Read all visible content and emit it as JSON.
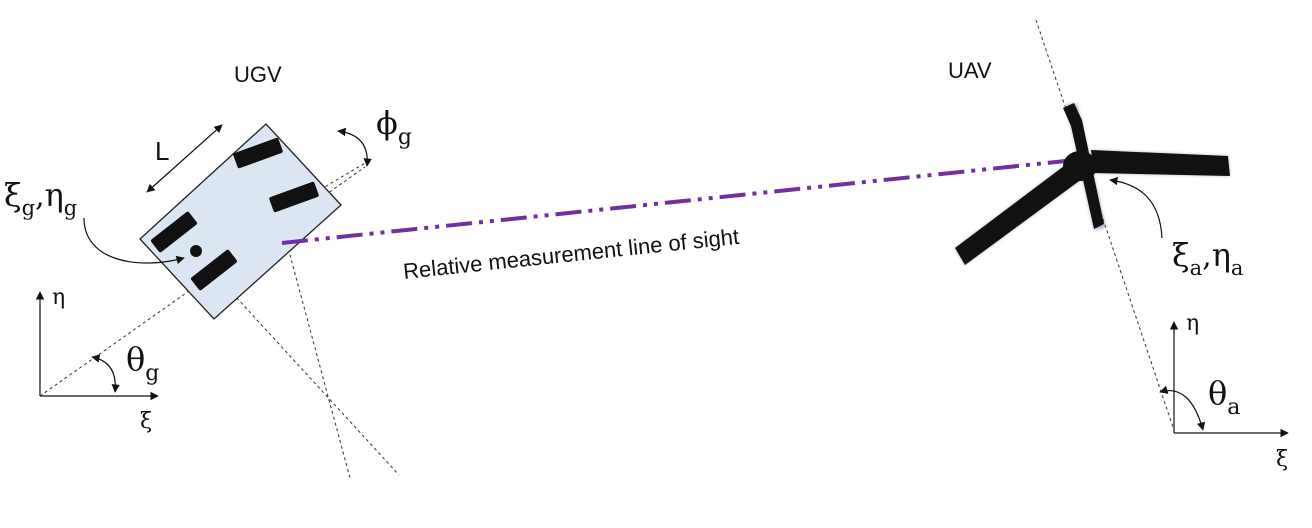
{
  "ugv": {
    "title": "UGV",
    "length_label": "L",
    "steer_symbol": "ϕ",
    "steer_sub": "g",
    "pos_xi": "ξ",
    "pos_xi_sub": "g",
    "pos_eta": "η",
    "pos_eta_sub": "g",
    "heading_symbol": "θ",
    "heading_sub": "g",
    "axis_x": "ξ",
    "axis_y": "η"
  },
  "uav": {
    "title": "UAV",
    "pos_xi": "ξ",
    "pos_xi_sub": "a",
    "pos_eta": "η",
    "pos_eta_sub": "a",
    "heading_symbol": "θ",
    "heading_sub": "a",
    "axis_x": "ξ",
    "axis_y": "η"
  },
  "line_of_sight": {
    "label": "Relative measurement line of sight",
    "color": "#7030a0"
  },
  "colors": {
    "ugv_body": "#dce6f2",
    "wheels": "#111111",
    "uav_body": "#111111"
  }
}
